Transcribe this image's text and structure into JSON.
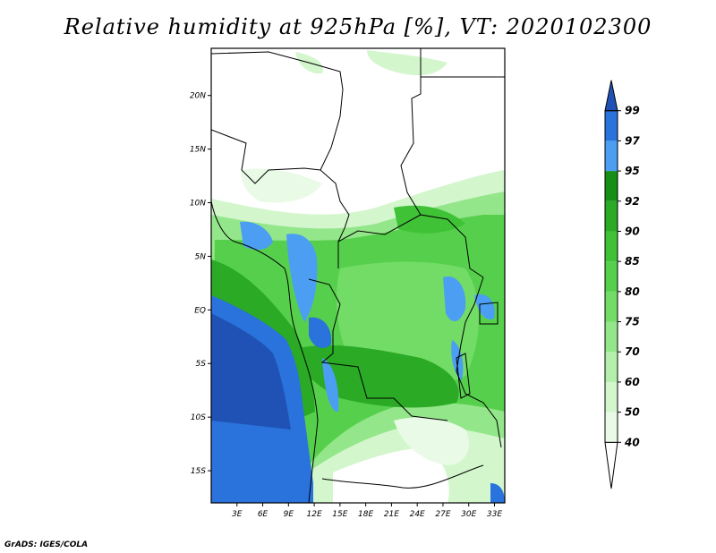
{
  "title": "Relative humidity at 925hPa [%], VT: 2020102300",
  "credit": "GrADS: IGES/COLA",
  "map": {
    "lat_ticks": [
      "20N",
      "15N",
      "10N",
      "5N",
      "EQ",
      "5S",
      "10S",
      "15S"
    ],
    "lat_values": [
      20,
      15,
      10,
      5,
      0,
      -5,
      -10,
      -15
    ],
    "lon_ticks": [
      "3E",
      "6E",
      "9E",
      "12E",
      "15E",
      "18E",
      "21E",
      "24E",
      "27E",
      "30E",
      "33E"
    ],
    "lon_values": [
      3,
      6,
      9,
      12,
      15,
      18,
      21,
      24,
      27,
      30,
      33
    ]
  },
  "colorbar": {
    "levels": [
      "40",
      "50",
      "60",
      "70",
      "75",
      "80",
      "85",
      "90",
      "92",
      "95",
      "97",
      "99"
    ],
    "colors": [
      "#e9fbe6",
      "#d3f6cd",
      "#b4efab",
      "#94e68a",
      "#72dc67",
      "#56d04c",
      "#40c237",
      "#2aaa25",
      "#178f17",
      "#4b9ef2",
      "#2a72dc",
      "#1f52b4"
    ],
    "below_color": "#ffffff",
    "above_color": "#1f52b4"
  }
}
